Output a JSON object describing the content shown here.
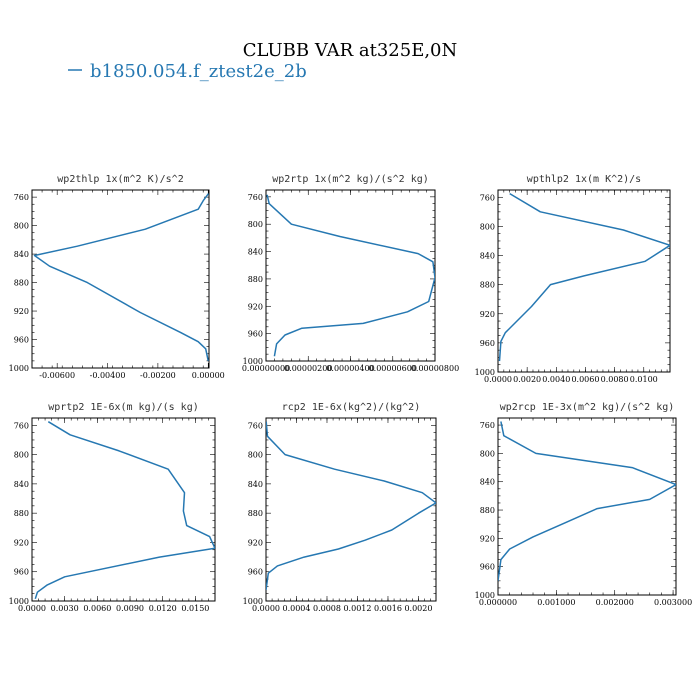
{
  "figure_title": "CLUBB VAR at325E,0N",
  "legend": {
    "label": "b1850.054.f_ztest2e_2b",
    "color": "#2678b2"
  },
  "chart_data": [
    {
      "type": "line",
      "title": "wp2thlp  1x(m^2 K)/s^2",
      "xlim": [
        -0.007,
        3e-05
      ],
      "ylim": [
        1000,
        750
      ],
      "xticks": [
        -0.006,
        -0.004,
        -0.002,
        0.0
      ],
      "xtick_labels": [
        "-0.00600",
        "-0.00400",
        "-0.00200",
        "0.00000"
      ],
      "yticks": [
        760,
        800,
        840,
        880,
        920,
        960,
        1000
      ],
      "series": [
        {
          "x": [
            1e-05,
            -0.0002,
            -0.0004,
            -0.0025,
            -0.0052,
            -0.0069,
            -0.0063,
            -0.0048,
            -0.0027,
            -0.0011,
            -0.0004,
            -0.0001,
            0.0
          ],
          "y": [
            755,
            765,
            777,
            805,
            829,
            842,
            857,
            880,
            922,
            950,
            963,
            973,
            990
          ]
        }
      ]
    },
    {
      "type": "line",
      "title": "wp2rtp  1x(m^2 kg)/(s^2 kg)",
      "xlim": [
        0,
        8e-06
      ],
      "ylim": [
        1000,
        750
      ],
      "xticks": [
        0,
        2e-06,
        4e-06,
        6e-06,
        8e-06
      ],
      "xtick_labels": [
        "0.00000000",
        "0.00000200",
        "0.00000400",
        "0.00000600",
        "0.00000800"
      ],
      "yticks": [
        760,
        800,
        840,
        880,
        920,
        960,
        1000
      ],
      "series": [
        {
          "x": [
            5e-08,
            1.5e-07,
            1.2e-06,
            3.5e-06,
            7.2e-06,
            7.9e-06,
            8e-06,
            7.7e-06,
            6.7e-06,
            4.6e-06,
            1.7e-06,
            9e-07,
            5e-07,
            4e-07
          ],
          "y": [
            757,
            770,
            800,
            818,
            843,
            855,
            878,
            913,
            928,
            945,
            952,
            962,
            975,
            993
          ]
        }
      ]
    },
    {
      "type": "line",
      "title": "wpthlp2  1x(m K^2)/s",
      "xlim": [
        0,
        0.0118
      ],
      "ylim": [
        1000,
        750
      ],
      "xticks": [
        0,
        0.002,
        0.004,
        0.006,
        0.008,
        0.01
      ],
      "xtick_labels": [
        "0.0000",
        "0.0020",
        "0.0040",
        "0.0060",
        "0.0080",
        "0.0100"
      ],
      "yticks": [
        760,
        800,
        840,
        880,
        920,
        960,
        1000
      ],
      "series": [
        {
          "x": [
            0.0008,
            0.0029,
            0.0086,
            0.0118,
            0.0101,
            0.0059,
            0.0036,
            0.0023,
            0.0012,
            0.0005,
            0.0002,
            0.0001
          ],
          "y": [
            755,
            780,
            805,
            826,
            848,
            868,
            880,
            910,
            932,
            946,
            958,
            985
          ]
        }
      ]
    },
    {
      "type": "line",
      "title": "wprtp2  1E-6x(m kg)/(s kg)",
      "xlim": [
        0,
        0.0168
      ],
      "ylim": [
        1000,
        750
      ],
      "xticks": [
        0,
        0.003,
        0.006,
        0.009,
        0.012,
        0.015
      ],
      "xtick_labels": [
        "0.0000",
        "0.0030",
        "0.0060",
        "0.0090",
        "0.0120",
        "0.0150"
      ],
      "yticks": [
        760,
        800,
        840,
        880,
        920,
        960,
        1000
      ],
      "series": [
        {
          "x": [
            0.0015,
            0.0035,
            0.008,
            0.0125,
            0.014,
            0.0139,
            0.0142,
            0.0163,
            0.0168,
            0.0117,
            0.003,
            0.0014,
            0.0005,
            0.0003
          ],
          "y": [
            755,
            773,
            795,
            820,
            852,
            877,
            897,
            912,
            928,
            940,
            967,
            978,
            988,
            997
          ]
        }
      ]
    },
    {
      "type": "line",
      "title": "rcp2  1E-6x(kg^2)/(kg^2)",
      "xlim": [
        0,
        0.00223
      ],
      "ylim": [
        1000,
        750
      ],
      "xticks": [
        0,
        0.0004,
        0.0008,
        0.0012,
        0.0016,
        0.002
      ],
      "xtick_labels": [
        "0.0000",
        "0.0004",
        "0.0008",
        "0.0012",
        "0.0016",
        "0.0020"
      ],
      "yticks": [
        760,
        800,
        840,
        880,
        920,
        960,
        1000
      ],
      "series": [
        {
          "x": [
            2e-06,
            2e-05,
            0.00025,
            0.0009,
            0.00155,
            0.00205,
            0.00223,
            0.002,
            0.00165,
            0.0013,
            0.00095,
            0.0005,
            0.00015,
            3e-05,
            0.0
          ],
          "y": [
            755,
            775,
            800,
            820,
            836,
            852,
            866,
            880,
            903,
            917,
            929,
            940,
            952,
            962,
            985
          ]
        }
      ]
    },
    {
      "type": "line",
      "title": "wp2rcp  1E-3x(m^2 kg)/(s^2 kg)",
      "xlim": [
        0,
        0.00305
      ],
      "ylim": [
        1000,
        750
      ],
      "xticks": [
        0,
        0.001,
        0.002,
        0.003
      ],
      "xtick_labels": [
        "0.000000",
        "0.001000",
        "0.002000",
        "0.003000"
      ],
      "yticks": [
        760,
        800,
        840,
        880,
        920,
        960,
        1000
      ],
      "series": [
        {
          "x": [
            5e-05,
            0.0001,
            0.00065,
            0.0023,
            0.00305,
            0.0026,
            0.0017,
            0.00115,
            0.0006,
            0.0002,
            5e-05,
            0.0
          ],
          "y": [
            755,
            775,
            800,
            820,
            844,
            865,
            878,
            898,
            918,
            935,
            950,
            980
          ]
        }
      ]
    }
  ]
}
